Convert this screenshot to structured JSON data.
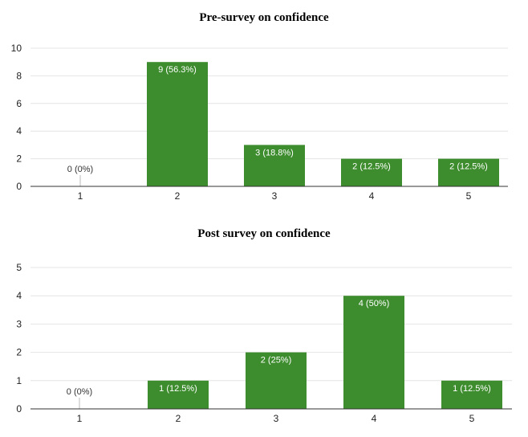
{
  "chart_data": [
    {
      "type": "bar",
      "title": "Pre-survey on confidence",
      "categories": [
        "1",
        "2",
        "3",
        "4",
        "5"
      ],
      "values": [
        0,
        9,
        3,
        2,
        2
      ],
      "data_labels": [
        "0 (0%)",
        "9 (56.3%)",
        "3 (18.8%)",
        "2 (12.5%)",
        "2 (12.5%)"
      ],
      "yticks": [
        0,
        2,
        4,
        6,
        8,
        10
      ],
      "ylim": [
        0,
        10
      ],
      "grid": true,
      "bar_color": "#3d8c2e"
    },
    {
      "type": "bar",
      "title": "Post survey on confidence",
      "categories": [
        "1",
        "2",
        "3",
        "4",
        "5"
      ],
      "values": [
        0,
        1,
        2,
        4,
        1
      ],
      "data_labels": [
        "0 (0%)",
        "1 (12.5%)",
        "2 (25%)",
        "4 (50%)",
        "1 (12.5%)"
      ],
      "yticks": [
        0,
        1,
        2,
        3,
        4,
        5
      ],
      "ylim": [
        0,
        5
      ],
      "grid": true,
      "bar_color": "#3d8c2e"
    }
  ]
}
